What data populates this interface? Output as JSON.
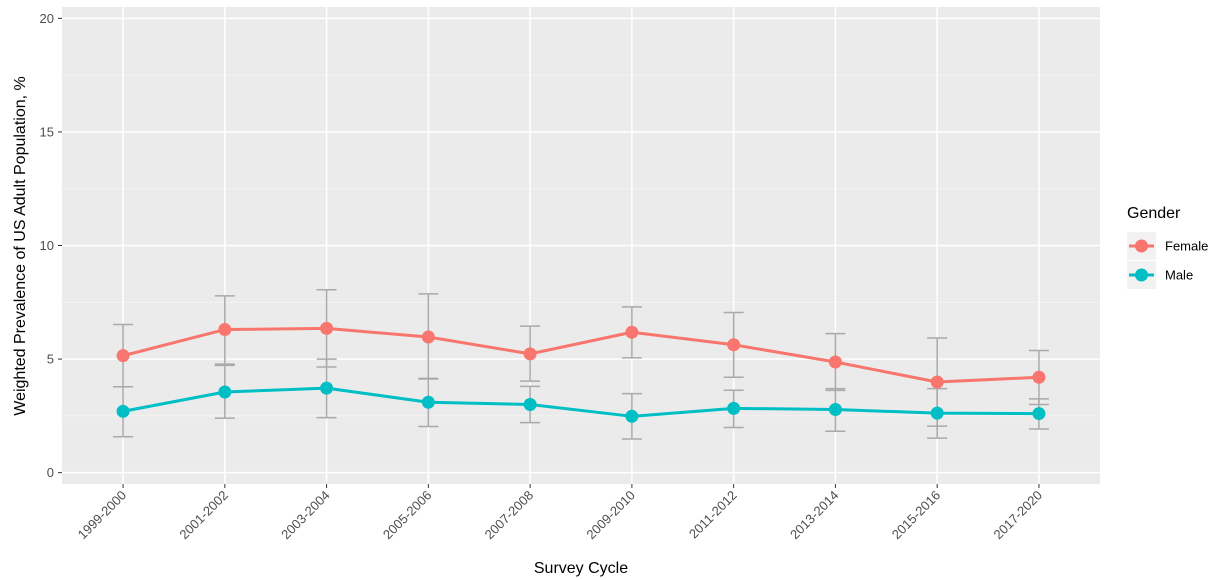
{
  "chart_data": {
    "type": "line",
    "title": "",
    "xlabel": "Survey Cycle",
    "ylabel": "Weighted Prevalence of US Adult Population, %",
    "ylim": [
      0,
      20
    ],
    "yticks": [
      0,
      5,
      10,
      15,
      20
    ],
    "ytick_labels": [
      "0",
      "5",
      "10",
      "15",
      "20"
    ],
    "categories": [
      "1999-2000",
      "2001-2002",
      "2003-2004",
      "2005-2006",
      "2007-2008",
      "2009-2010",
      "2011-2012",
      "2013-2014",
      "2015-2016",
      "2017-2020"
    ],
    "grid": true,
    "legend": {
      "title": "Gender",
      "placement": "right"
    },
    "series": [
      {
        "name": "Female",
        "color": "#F8766D",
        "values": [
          5.15,
          6.3,
          6.35,
          5.97,
          5.23,
          6.18,
          5.63,
          4.87,
          3.99,
          4.2
        ],
        "lower": [
          3.78,
          4.78,
          4.65,
          4.12,
          4.03,
          5.05,
          4.2,
          3.62,
          2.05,
          3.0
        ],
        "upper": [
          6.52,
          7.78,
          8.05,
          7.87,
          6.45,
          7.3,
          7.05,
          6.12,
          5.93,
          5.38
        ]
      },
      {
        "name": "Male",
        "color": "#00BFC4",
        "values": [
          2.7,
          3.55,
          3.72,
          3.1,
          3.0,
          2.48,
          2.83,
          2.78,
          2.62,
          2.6
        ],
        "lower": [
          1.58,
          2.4,
          2.42,
          2.03,
          2.2,
          1.48,
          1.99,
          1.82,
          1.52,
          1.92
        ],
        "upper": [
          3.78,
          4.72,
          5.0,
          4.15,
          3.8,
          3.48,
          3.63,
          3.7,
          3.7,
          3.25
        ]
      }
    ],
    "errorbar_color": "#A9A9A9"
  }
}
